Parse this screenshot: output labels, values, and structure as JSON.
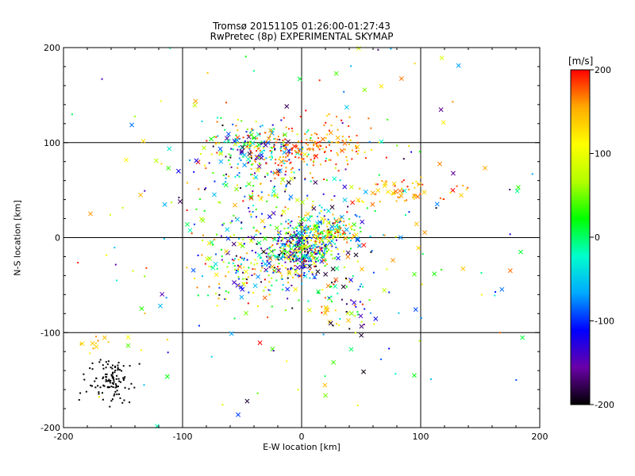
{
  "chart_data": {
    "type": "scatter",
    "title": "Tromsø 20151105 01:26:00-01:27:43",
    "subtitle": "RwPretec (8p) EXPERIMENTAL SKYMAP",
    "xlabel": "E-W location [km]",
    "ylabel": "N-S location [km]",
    "xlim": [
      -200,
      200
    ],
    "ylim": [
      -200,
      200
    ],
    "xticks": [
      -200,
      -100,
      0,
      100,
      200
    ],
    "yticks": [
      -200,
      -100,
      0,
      100,
      200
    ],
    "grid": true,
    "colorbar": {
      "label": "[m/s]",
      "range": [
        -200,
        200
      ],
      "ticks": [
        200,
        100,
        0,
        -100,
        -200
      ],
      "colors": [
        "#000000",
        "#6a00a8",
        "#0000ff",
        "#00aaff",
        "#00ffcc",
        "#00ff00",
        "#b4ff00",
        "#ffff00",
        "#ffaa00",
        "#ff0000"
      ]
    },
    "marker_types": [
      "dot",
      "x"
    ],
    "clusters": [
      {
        "x": 0,
        "y": -10,
        "sx": 14,
        "sy": 14,
        "n": 420,
        "vmin": -200,
        "vmax": 200,
        "xmark_frac": 0.15
      },
      {
        "x": 25,
        "y": 5,
        "sx": 15,
        "sy": 12,
        "n": 160,
        "vmin": -100,
        "vmax": 200,
        "xmark_frac": 0.12
      },
      {
        "x": -40,
        "y": 95,
        "sx": 22,
        "sy": 14,
        "n": 180,
        "vmin": -200,
        "vmax": 200,
        "xmark_frac": 0.3
      },
      {
        "x": -5,
        "y": 95,
        "sx": 18,
        "sy": 12,
        "n": 120,
        "vmin": 150,
        "vmax": 200,
        "xmark_frac": 0.05
      },
      {
        "x": 30,
        "y": 100,
        "sx": 25,
        "sy": 15,
        "n": 70,
        "vmin": 120,
        "vmax": 200,
        "xmark_frac": 0.05
      },
      {
        "x": -30,
        "y": 55,
        "sx": 25,
        "sy": 20,
        "n": 120,
        "vmin": -200,
        "vmax": 200,
        "xmark_frac": 0.2
      },
      {
        "x": -40,
        "y": -30,
        "sx": 22,
        "sy": 18,
        "n": 180,
        "vmin": -200,
        "vmax": 200,
        "xmark_frac": 0.18
      },
      {
        "x": 35,
        "y": -60,
        "sx": 14,
        "sy": 16,
        "n": 60,
        "vmin": -200,
        "vmax": 200,
        "xmark_frac": 0.4
      },
      {
        "x": 90,
        "y": 50,
        "sx": 25,
        "sy": 8,
        "n": 60,
        "vmin": 120,
        "vmax": 200,
        "xmark_frac": 0.25
      },
      {
        "x": -160,
        "y": -150,
        "sx": 10,
        "sy": 12,
        "n": 110,
        "vmin": -200,
        "vmax": -200,
        "xmark_frac": 0
      },
      {
        "x": -175,
        "y": -110,
        "sx": 6,
        "sy": 4,
        "n": 10,
        "vmin": 130,
        "vmax": 170,
        "xmark_frac": 0.5
      },
      {
        "x": 0,
        "y": 0,
        "sx": 110,
        "sy": 110,
        "n": 350,
        "vmin": -200,
        "vmax": 200,
        "xmark_frac": 0.35
      }
    ]
  }
}
